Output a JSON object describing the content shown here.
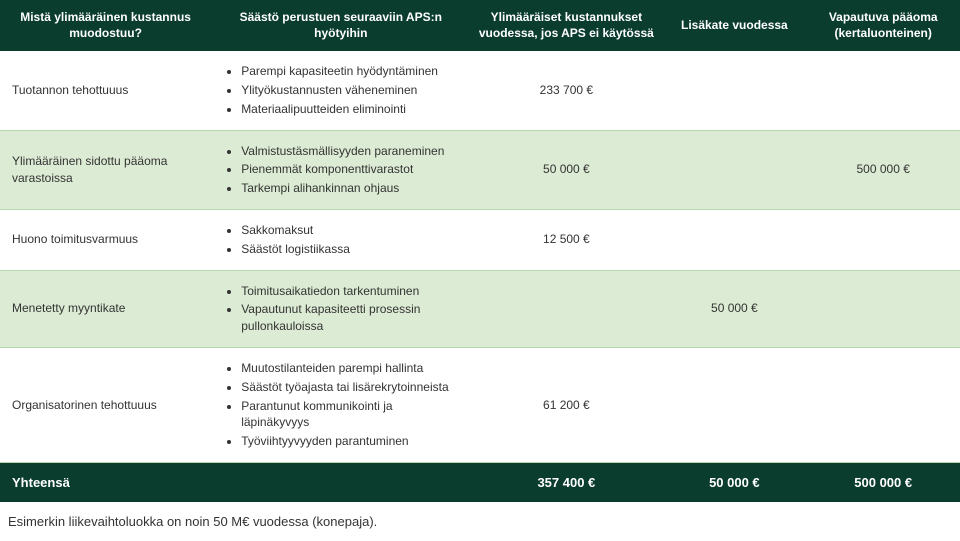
{
  "colors": {
    "header_bg": "#0b3d2e",
    "header_text": "#ffffff",
    "row_alt_bg": "#dcebd3",
    "border": "#b7d7b0",
    "text": "#333333"
  },
  "headers": {
    "col1": "Mistä ylimääräinen kustannus muodostuu?",
    "col2": "Säästö perustuen seuraaviin APS:n hyötyihin",
    "col3": "Ylimääräiset kustannukset vuodessa, jos APS ei käytössä",
    "col4": "Lisäkate vuodessa",
    "col5": "Vapautuva pääoma (kertaluonteinen)"
  },
  "rows": [
    {
      "label": "Tuotannon tehottuuus",
      "benefits": [
        "Parempi kapasiteetin hyödyntäminen",
        "Ylityökustannusten väheneminen",
        "Materiaalipuutteiden eliminointi"
      ],
      "cost": "233 700 €",
      "margin": "",
      "capital": ""
    },
    {
      "label": "Ylimääräinen sidottu pääoma varastoissa",
      "benefits": [
        "Valmistustäsmällisyyden paraneminen",
        "Pienemmät komponenttivarastot",
        "Tarkempi alihankinnan ohjaus"
      ],
      "cost": "50 000 €",
      "margin": "",
      "capital": "500 000 €"
    },
    {
      "label": "Huono toimitusvarmuus",
      "benefits": [
        "Sakkomaksut",
        "Säästöt logistiikassa"
      ],
      "cost": "12 500 €",
      "margin": "",
      "capital": ""
    },
    {
      "label": "Menetetty myyntikate",
      "benefits": [
        "Toimitusaikatiedon tarkentuminen",
        "Vapautunut kapasiteetti prosessin pullonkauloissa"
      ],
      "cost": "",
      "margin": "50 000 €",
      "capital": ""
    },
    {
      "label": "Organisatorinen tehottuuus",
      "benefits": [
        "Muutostilanteiden parempi hallinta",
        "Säästöt työajasta tai lisärekrytoinneista",
        "Parantunut kommunikointi ja läpinäkyvyys",
        "Työviihtyyvyyden parantuminen"
      ],
      "cost": "61 200 €",
      "margin": "",
      "capital": ""
    }
  ],
  "total": {
    "label": "Yhteensä",
    "cost": "357 400 €",
    "margin": "50 000 €",
    "capital": "500 000 €"
  },
  "footnote": "Esimerkin liikevaihtoluokka on noin 50 M€ vuodessa (konepaja)."
}
